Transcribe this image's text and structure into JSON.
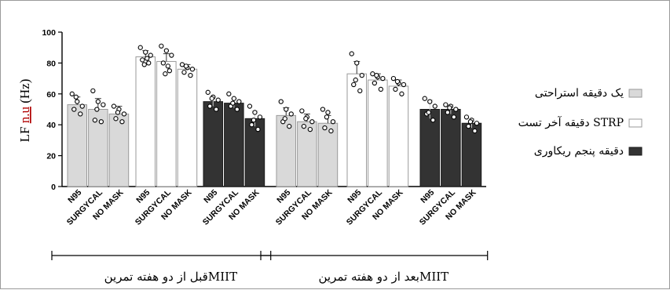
{
  "chart_data": {
    "type": "bar",
    "ylabel": "LF n.u (Hz)",
    "ylabel_underlined_part": "n.u",
    "ylim": [
      0,
      100
    ],
    "yticks": [
      0,
      20,
      40,
      60,
      80,
      100
    ],
    "grid": false,
    "legend_position": "right",
    "error_bars": true,
    "individual_points": true,
    "mask_labels": [
      "N95",
      "SURGYCAL",
      "NO MASK"
    ],
    "series": [
      {
        "name": "یک دقیقه استراحتی",
        "color": "#d9d9d9",
        "stroke": "#9a9a9a"
      },
      {
        "name": "دقیقه آخر تست STRP",
        "color": "#ffffff",
        "stroke": "#9a9a9a"
      },
      {
        "name": "دقیقه پنجم ریکاوری",
        "color": "#333333",
        "stroke": "#1a1a1a"
      }
    ],
    "bars": [
      {
        "series": 0,
        "label": "N95",
        "value": 53,
        "err": 5,
        "points": [
          60,
          55,
          52,
          50,
          47,
          58
        ]
      },
      {
        "series": 0,
        "label": "SURGYCAL",
        "value": 50,
        "err": 7,
        "points": [
          62,
          55,
          53,
          43,
          42,
          50
        ]
      },
      {
        "series": 0,
        "label": "NO MASK",
        "value": 47,
        "err": 5,
        "points": [
          52,
          50,
          47,
          44,
          42,
          48
        ]
      },
      {
        "series": 1,
        "label": "N95",
        "value": 84,
        "err": 4,
        "points": [
          90,
          87,
          85,
          82,
          80,
          79,
          83
        ]
      },
      {
        "series": 1,
        "label": "SURGYCAL",
        "value": 81,
        "err": 5,
        "points": [
          91,
          88,
          85,
          80,
          75,
          73,
          78
        ]
      },
      {
        "series": 1,
        "label": "NO MASK",
        "value": 76,
        "err": 3,
        "points": [
          79,
          77,
          76,
          74,
          72,
          78
        ]
      },
      {
        "series": 2,
        "label": "N95",
        "value": 55,
        "err": 3,
        "points": [
          61,
          58,
          56,
          52,
          50,
          57
        ]
      },
      {
        "series": 2,
        "label": "SURGYCAL",
        "value": 54,
        "err": 3,
        "points": [
          60,
          57,
          55,
          52,
          50,
          54
        ]
      },
      {
        "series": 2,
        "label": "NO MASK",
        "value": 44,
        "err": 5,
        "points": [
          52,
          48,
          45,
          40,
          37,
          43
        ]
      },
      {
        "series": 0,
        "label": "N95",
        "value": 46,
        "err": 5,
        "points": [
          55,
          50,
          47,
          42,
          39,
          44
        ]
      },
      {
        "series": 0,
        "label": "SURGYCAL",
        "value": 42,
        "err": 5,
        "points": [
          49,
          45,
          42,
          39,
          37,
          44
        ]
      },
      {
        "series": 0,
        "label": "NO MASK",
        "value": 41,
        "err": 5,
        "points": [
          50,
          48,
          42,
          38,
          36,
          45
        ]
      },
      {
        "series": 1,
        "label": "N95",
        "value": 73,
        "err": 8,
        "points": [
          86,
          80,
          72,
          66,
          62,
          69
        ]
      },
      {
        "series": 1,
        "label": "SURGYCAL",
        "value": 69,
        "err": 4,
        "points": [
          73,
          71,
          70,
          67,
          63,
          72
        ]
      },
      {
        "series": 1,
        "label": "NO MASK",
        "value": 65,
        "err": 4,
        "points": [
          70,
          67,
          66,
          63,
          60,
          68
        ]
      },
      {
        "series": 2,
        "label": "N95",
        "value": 50,
        "err": 6,
        "points": [
          57,
          55,
          52,
          47,
          43,
          48
        ]
      },
      {
        "series": 2,
        "label": "SURGYCAL",
        "value": 50,
        "err": 3,
        "points": [
          53,
          52,
          50,
          48,
          45,
          51
        ]
      },
      {
        "series": 2,
        "label": "NO MASK",
        "value": 41,
        "err": 3,
        "points": [
          45,
          43,
          41,
          39,
          36,
          42
        ]
      }
    ],
    "groups": [
      {
        "label": "قبل از دو هفته تمرینMIIT",
        "bar_range": [
          0,
          8
        ]
      },
      {
        "label": "بعد از دو هفته تمرینMIIT",
        "bar_range": [
          9,
          17
        ]
      }
    ]
  }
}
